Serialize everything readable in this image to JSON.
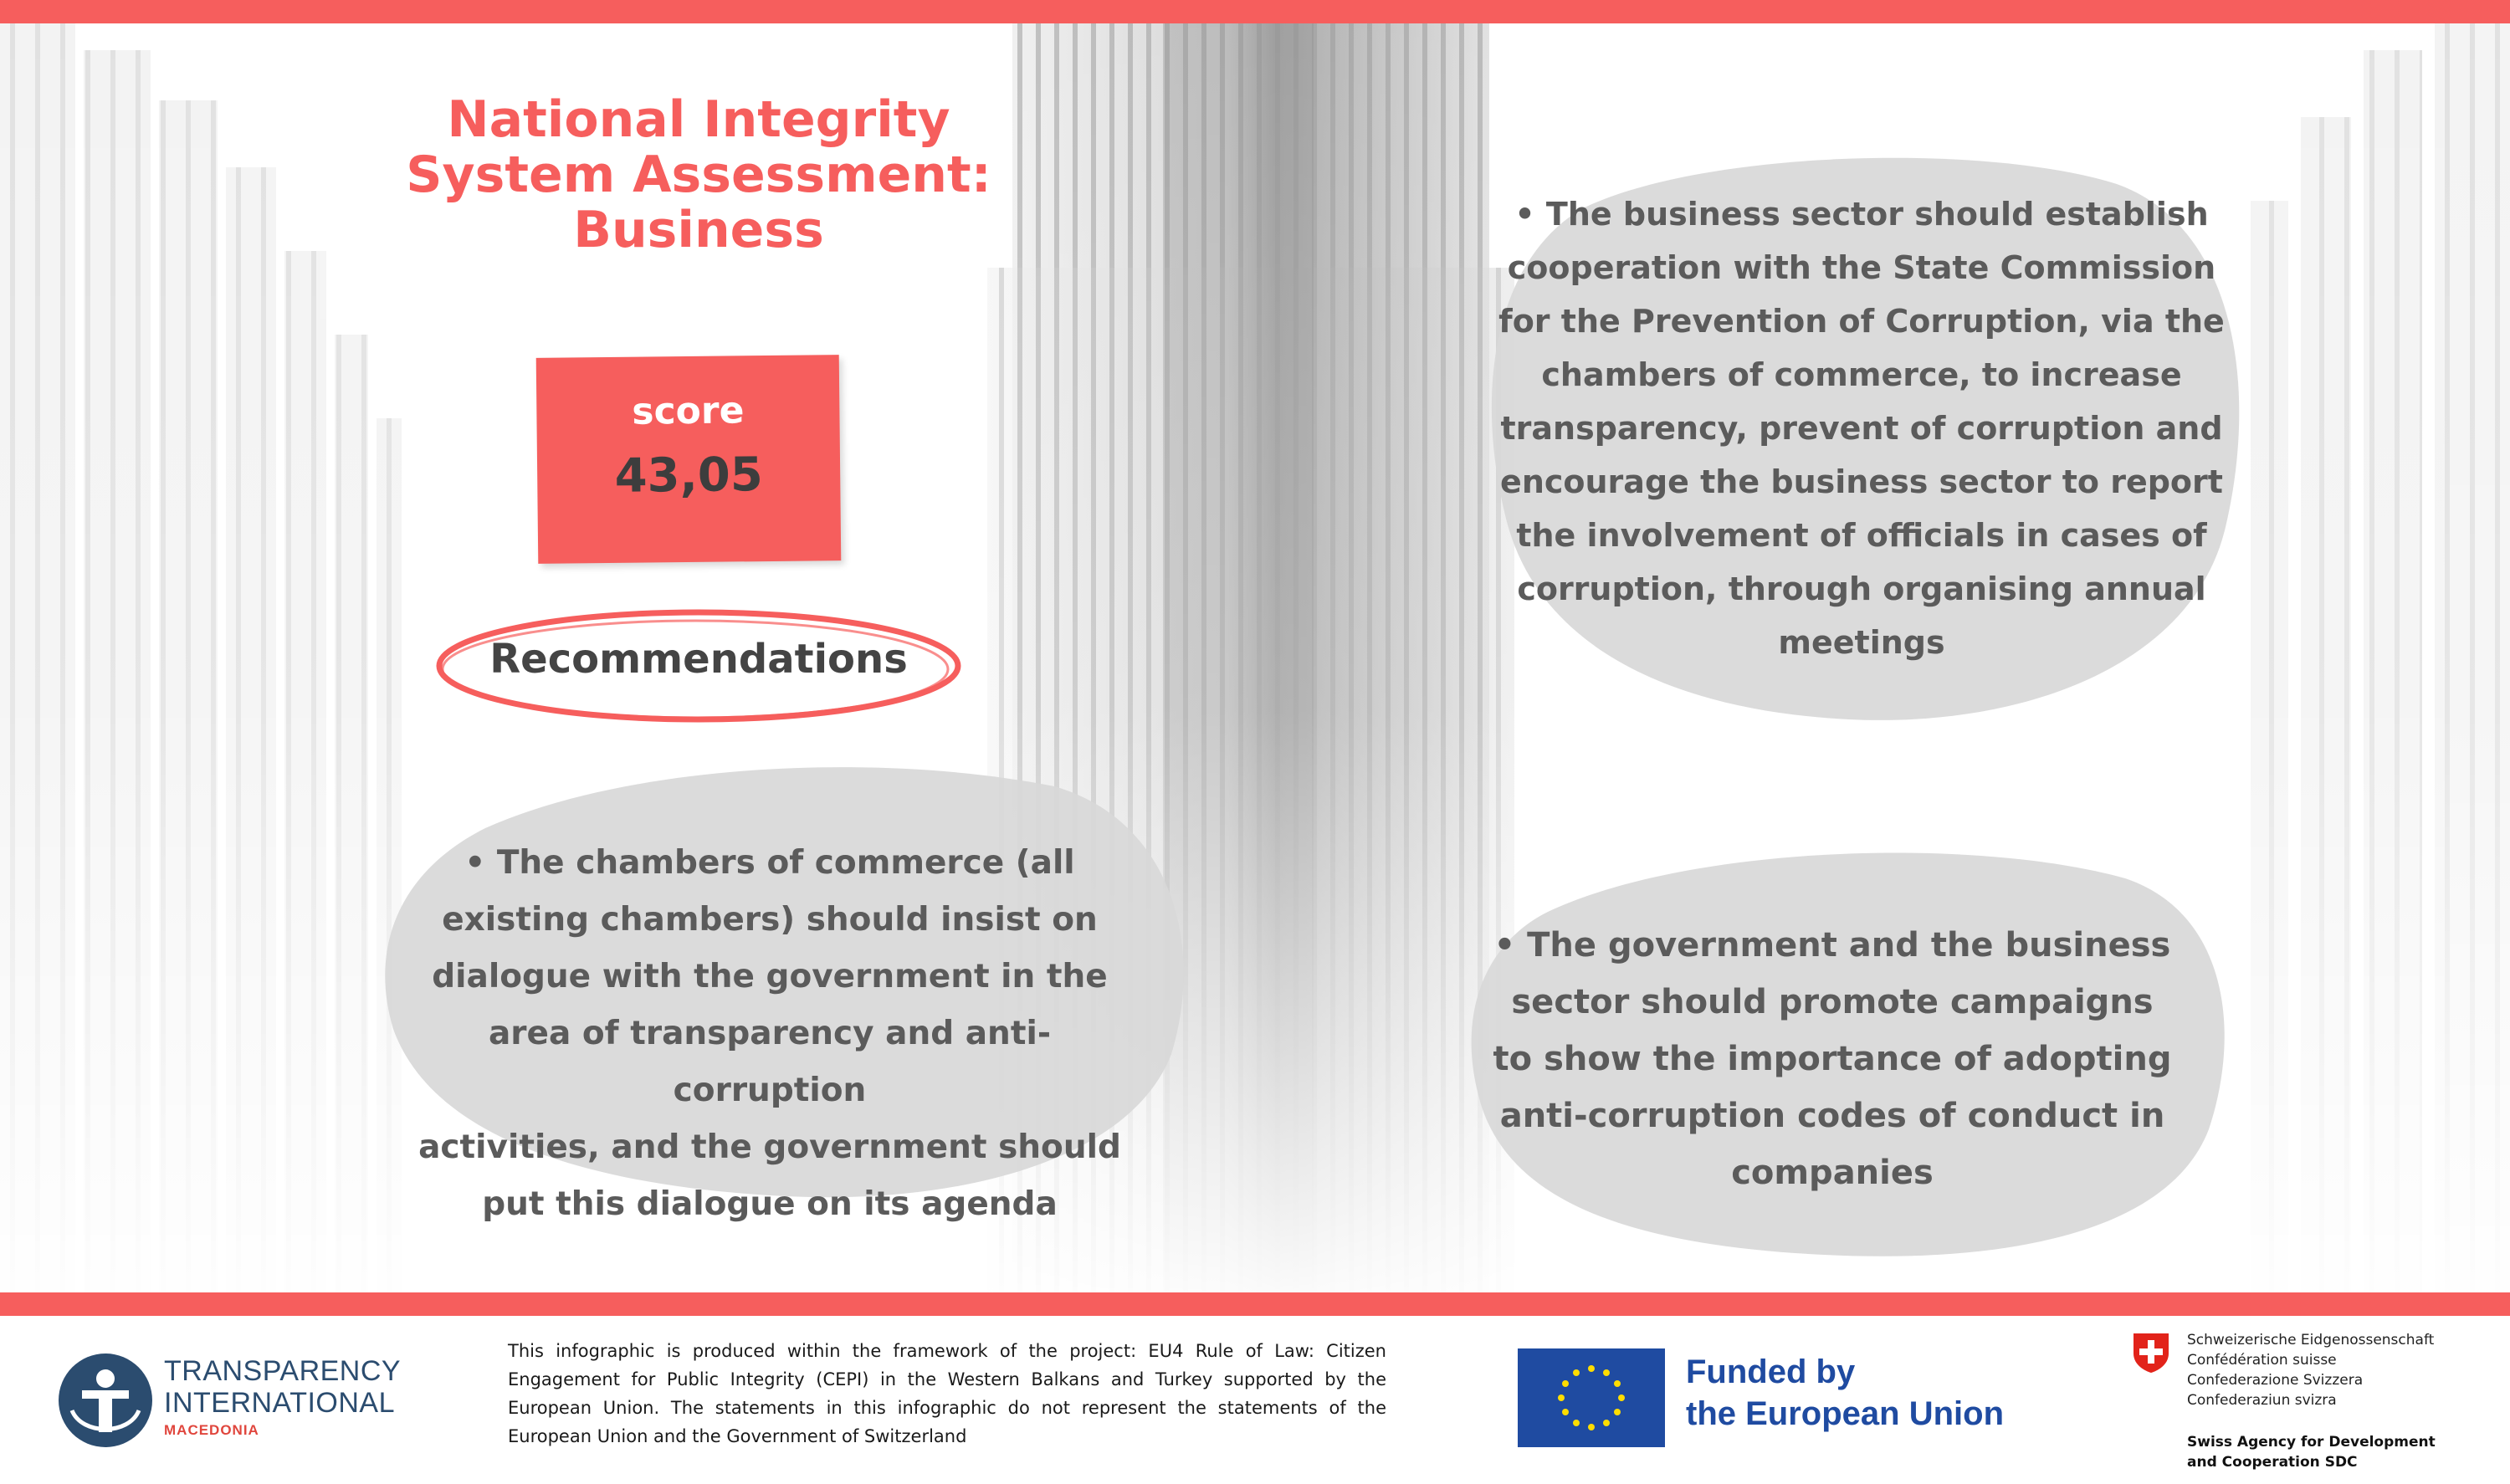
{
  "title": {
    "line1": "National Integrity",
    "line2": "System Assessment:",
    "line3": "Business"
  },
  "score": {
    "label": "score",
    "value": "43,05"
  },
  "recommendations_label": "Recommendations",
  "recommendations": [
    {
      "lines": [
        "• The business sector should establish",
        "cooperation with the State Commission",
        "for the Prevention of Corruption, via the",
        "chambers of commerce, to increase",
        "transparency, prevent of corruption and",
        "encourage the business sector to report",
        "the involvement of officials in cases of",
        "corruption, through organising annual",
        "meetings"
      ]
    },
    {
      "lines": [
        "• The chambers of commerce (all",
        "existing chambers) should insist on",
        "dialogue with the government in the",
        "area of transparency and anti-corruption",
        "activities, and the government should",
        "put this dialogue on its agenda"
      ]
    },
    {
      "lines": [
        "• The government and the business",
        "sector should promote campaigns",
        "to show the importance of adopting",
        "anti-corruption codes of conduct in",
        "companies"
      ]
    }
  ],
  "footer": {
    "ti_logo": {
      "line1": "TRANSPARENCY",
      "line2": "INTERNATIONAL",
      "line3": "MACEDONIA"
    },
    "disclaimer": "This infographic is produced within the framework of the project: EU4 Rule of Law: Citizen Engagement for Public Integrity (CEPI) in the Western Balkans and Turkey supported by the European Union. The statements in this infographic do not represent the statements of the European Union and the Government of Switzerland",
    "eu": {
      "line1": "Funded by",
      "line2": "the European Union"
    },
    "swiss": {
      "lines": [
        "Schweizerische Eidgenossenschaft",
        "Confédération suisse",
        "Confederazione Svizzera",
        "Confederaziun svizra"
      ],
      "sdc_line1": "Swiss Agency for Development",
      "sdc_line2": "and Cooperation SDC"
    }
  },
  "colors": {
    "accent": "#f65e5d",
    "blob": "#d8d8d8",
    "text": "#5b5b5b",
    "eu_blue": "#1f4ba1",
    "ti_blue": "#2b4c6f"
  }
}
